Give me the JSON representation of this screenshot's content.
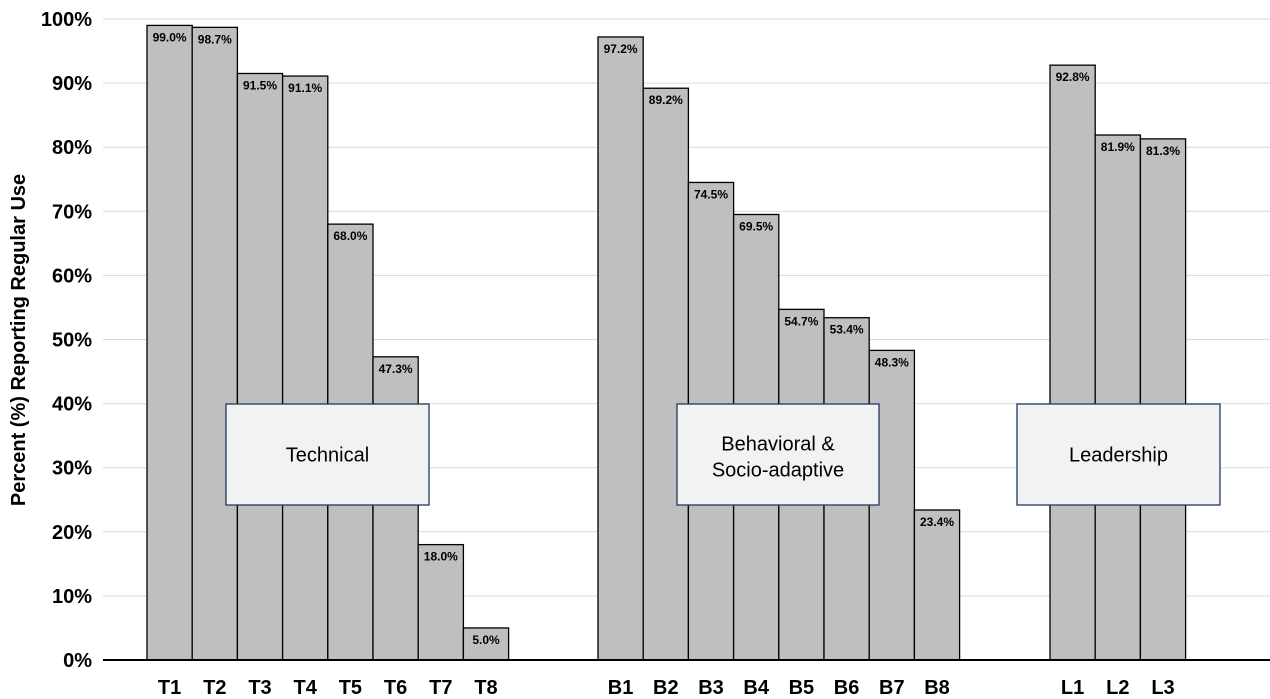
{
  "chart_data": {
    "type": "bar",
    "ylabel": "Percent (%) Reporting Regular Use",
    "ylim": [
      0,
      100
    ],
    "yticks": [
      "0%",
      "10%",
      "20%",
      "30%",
      "40%",
      "50%",
      "60%",
      "70%",
      "80%",
      "90%",
      "100%"
    ],
    "bar_color": "#bfbfbf",
    "box_color": "#f2f2f2",
    "box_border_color": "#1f3864",
    "groups": [
      {
        "label": "Technical",
        "categories": [
          "T1",
          "T2",
          "T3",
          "T4",
          "T5",
          "T6",
          "T7",
          "T8"
        ],
        "values": [
          99.0,
          98.7,
          91.5,
          91.1,
          68.0,
          47.3,
          18.0,
          5.0
        ],
        "data_labels": [
          "99.0%",
          "98.7%",
          "91.5%",
          "91.1%",
          "68.0%",
          "47.3%",
          "18.0%",
          "5.0%"
        ]
      },
      {
        "label_lines": [
          "Behavioral &",
          "Socio-adaptive"
        ],
        "categories": [
          "B1",
          "B2",
          "B3",
          "B4",
          "B5",
          "B6",
          "B7",
          "B8"
        ],
        "values": [
          97.2,
          89.2,
          74.5,
          69.5,
          54.7,
          53.4,
          48.3,
          23.4
        ],
        "data_labels": [
          "97.2%",
          "89.2%",
          "74.5%",
          "69.5%",
          "54.7%",
          "53.4%",
          "48.3%",
          "23.4%"
        ]
      },
      {
        "label": "Leadership",
        "categories": [
          "L1",
          "L2",
          "L3"
        ],
        "values": [
          92.8,
          81.9,
          81.3
        ],
        "data_labels": [
          "92.8%",
          "81.9%",
          "81.3%"
        ]
      }
    ]
  }
}
